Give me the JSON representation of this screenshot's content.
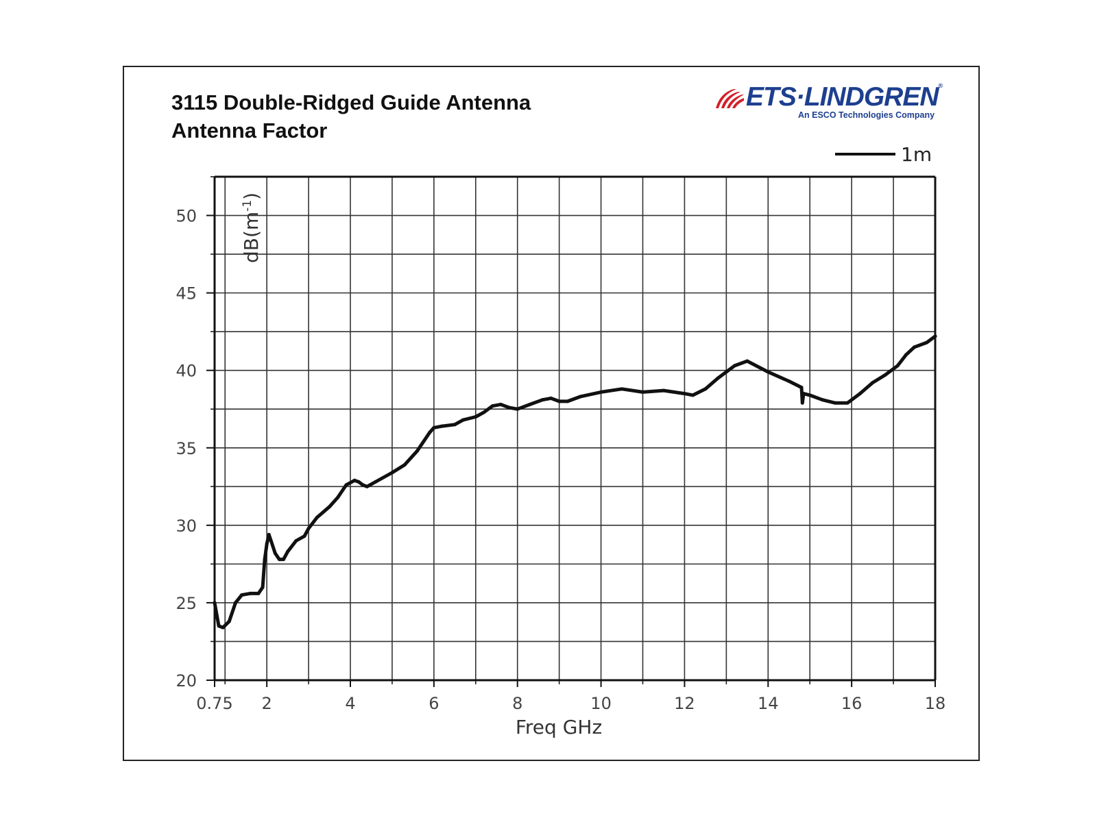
{
  "header": {
    "title_line1": "3115 Double-Ridged Guide Antenna",
    "title_line2": "Antenna Factor"
  },
  "logo": {
    "name": "ETS·LINDGREN",
    "registered": "®",
    "tagline": "An ESCO Technologies Company",
    "brand_color": "#1d3f8f",
    "mark_color": "#d3202a"
  },
  "chart_data": {
    "type": "line",
    "title": "3115 Double-Ridged Guide Antenna Antenna Factor",
    "xlabel": "Freq GHz",
    "ylabel": "dB(m-1)",
    "ylabel_base": "dB(m",
    "ylabel_sup": "-1",
    "ylabel_close": ")",
    "xlim": [
      0.75,
      18
    ],
    "ylim": [
      20,
      52.5
    ],
    "x_ticks": [
      0.75,
      2,
      4,
      6,
      8,
      10,
      12,
      14,
      16,
      18
    ],
    "x_tick_labels": [
      "0.75",
      "2",
      "4",
      "6",
      "8",
      "10",
      "12",
      "14",
      "16",
      "18"
    ],
    "y_ticks": [
      20,
      25,
      30,
      35,
      40,
      45,
      50
    ],
    "y_tick_labels": [
      "20",
      "25",
      "30",
      "35",
      "40",
      "45",
      "50"
    ],
    "grid": true,
    "legend_position": "top-right",
    "series": [
      {
        "name": "1m",
        "color": "#111111",
        "x": [
          0.75,
          0.85,
          0.95,
          1.1,
          1.25,
          1.4,
          1.6,
          1.8,
          1.9,
          1.95,
          2.0,
          2.05,
          2.1,
          2.2,
          2.3,
          2.4,
          2.5,
          2.7,
          2.9,
          3.0,
          3.2,
          3.5,
          3.7,
          3.9,
          4.1,
          4.2,
          4.3,
          4.4,
          4.6,
          5.0,
          5.3,
          5.6,
          5.9,
          6.0,
          6.2,
          6.5,
          6.7,
          7.0,
          7.2,
          7.4,
          7.6,
          7.8,
          8.0,
          8.3,
          8.6,
          8.8,
          9.0,
          9.2,
          9.5,
          10.0,
          10.5,
          11.0,
          11.5,
          12.0,
          12.2,
          12.5,
          12.8,
          13.2,
          13.5,
          14.0,
          14.5,
          14.8,
          14.82,
          14.85,
          15.0,
          15.3,
          15.6,
          15.9,
          16.2,
          16.5,
          16.8,
          17.1,
          17.3,
          17.5,
          17.8,
          18.0
        ],
        "y": [
          25.0,
          23.5,
          23.4,
          23.8,
          25.0,
          25.5,
          25.6,
          25.6,
          26.0,
          27.8,
          28.8,
          29.4,
          29.0,
          28.2,
          27.8,
          27.8,
          28.3,
          29.0,
          29.3,
          29.8,
          30.5,
          31.2,
          31.8,
          32.6,
          32.9,
          32.8,
          32.6,
          32.5,
          32.8,
          33.4,
          33.9,
          34.8,
          36.0,
          36.3,
          36.4,
          36.5,
          36.8,
          37.0,
          37.3,
          37.7,
          37.8,
          37.6,
          37.5,
          37.8,
          38.1,
          38.2,
          38.0,
          38.0,
          38.3,
          38.6,
          38.8,
          38.6,
          38.7,
          38.5,
          38.4,
          38.8,
          39.5,
          40.3,
          40.6,
          39.9,
          39.3,
          38.9,
          37.9,
          38.5,
          38.4,
          38.1,
          37.9,
          37.9,
          38.5,
          39.2,
          39.7,
          40.3,
          41.0,
          41.5,
          41.8,
          42.2
        ]
      }
    ]
  }
}
